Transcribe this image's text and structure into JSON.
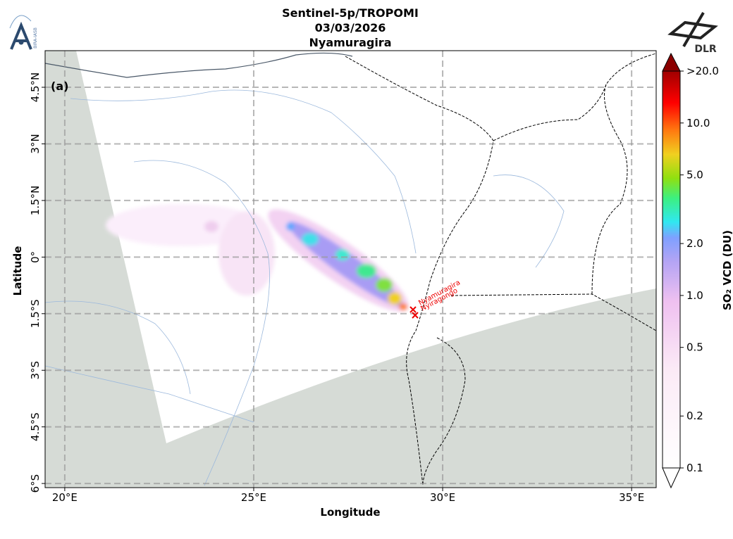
{
  "header": {
    "title": [
      "Sentinel-5p/TROPOMI",
      "03/03/2026",
      "Nyamuragira"
    ],
    "logos": {
      "left": "BIRA-IASB",
      "right": "DLR"
    }
  },
  "map": {
    "panel_label": "(a)",
    "xlabel": "Longitude",
    "ylabel": "Latitude",
    "xlim": [
      19.48,
      35.65
    ],
    "ylim": [
      -6.11,
      5.47
    ],
    "grid": true,
    "xticks": [
      {
        "value": 20,
        "label": "20°E"
      },
      {
        "value": 25,
        "label": "25°E"
      },
      {
        "value": 30,
        "label": "30°E"
      },
      {
        "value": 35,
        "label": "35°E"
      }
    ],
    "yticks": [
      {
        "value": 4.5,
        "label": "4.5°N"
      },
      {
        "value": 3,
        "label": "3°N"
      },
      {
        "value": 1.5,
        "label": "1.5°N"
      },
      {
        "value": 0,
        "label": "0°"
      },
      {
        "value": -1.5,
        "label": "1.5°S"
      },
      {
        "value": -3,
        "label": "3°S"
      },
      {
        "value": -4.5,
        "label": "4.5°S"
      },
      {
        "value": -6,
        "label": "6°S"
      }
    ],
    "volcanoes": [
      "Nyamuragira",
      "Nyiragongo"
    ]
  },
  "colorbar": {
    "label": "SO₂ VCD (DU)",
    "scale": "log",
    "lim": [
      0.1,
      20
    ],
    "ticks": [
      0.1,
      0.2,
      0.5,
      {
        "value": 1,
        "label": "1.0"
      },
      {
        "value": 2,
        "label": "2.0"
      },
      {
        "value": 5,
        "label": "5.0"
      },
      {
        "value": 10,
        "label": "10.0"
      },
      {
        "value": 20,
        "label": ">20.0"
      }
    ]
  }
}
